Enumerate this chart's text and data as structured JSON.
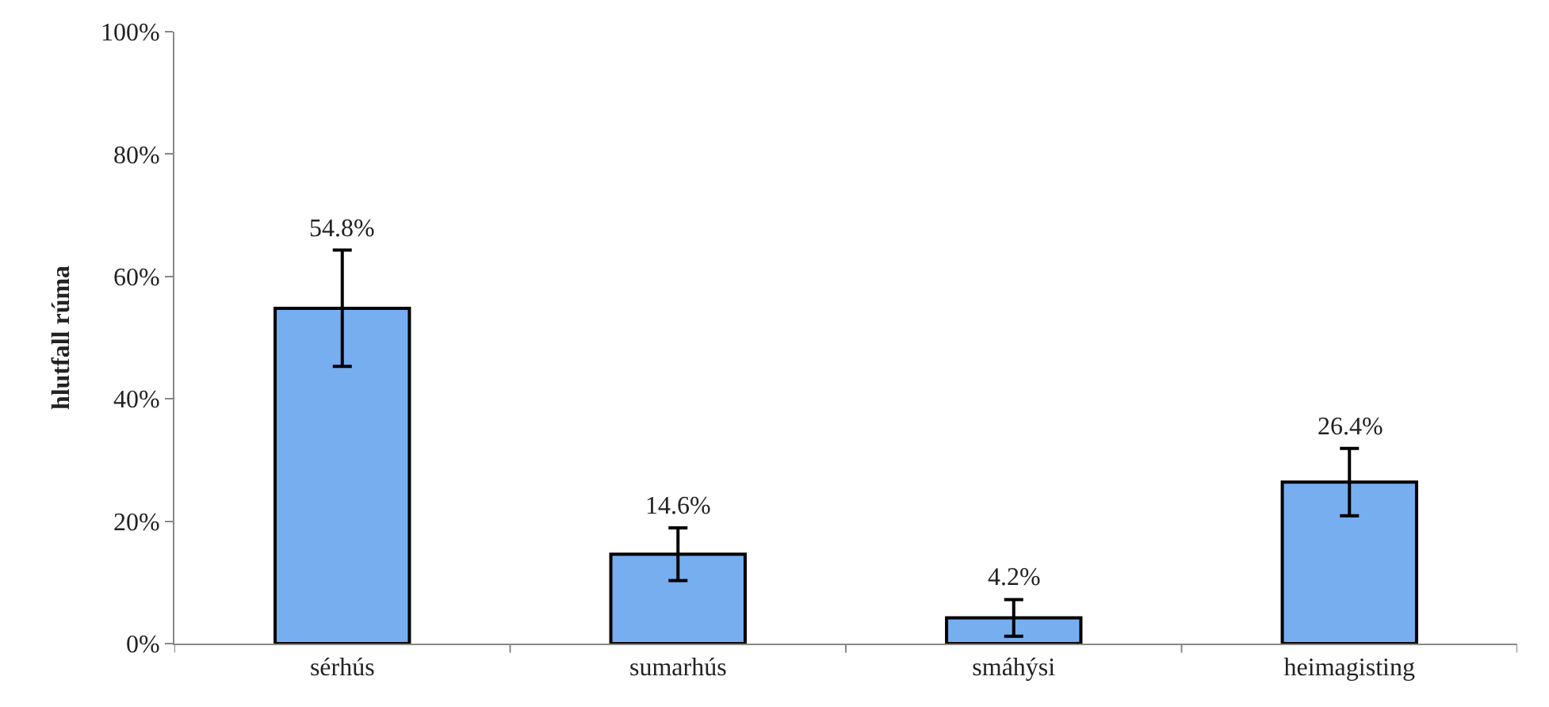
{
  "chart_data": {
    "type": "bar",
    "ylabel": "hlutfall rúma",
    "categories": [
      "sérhús",
      "sumarhús",
      "smáhýsi",
      "heimagisting"
    ],
    "values": [
      54.8,
      14.6,
      4.2,
      26.4
    ],
    "errors": [
      9.5,
      4.3,
      3,
      5.5
    ],
    "value_labels": [
      "54.8%",
      "14.6%",
      "4.2%",
      "26.4%"
    ],
    "color": "#76aef0",
    "ylim": [
      0,
      100
    ],
    "yticks": [
      {
        "value": 0,
        "label": "0%"
      },
      {
        "value": 20,
        "label": "20%"
      },
      {
        "value": 40,
        "label": "40%"
      },
      {
        "value": 60,
        "label": "60%"
      },
      {
        "value": 80,
        "label": "80%"
      },
      {
        "value": 100,
        "label": "100%"
      }
    ],
    "legend": false
  }
}
